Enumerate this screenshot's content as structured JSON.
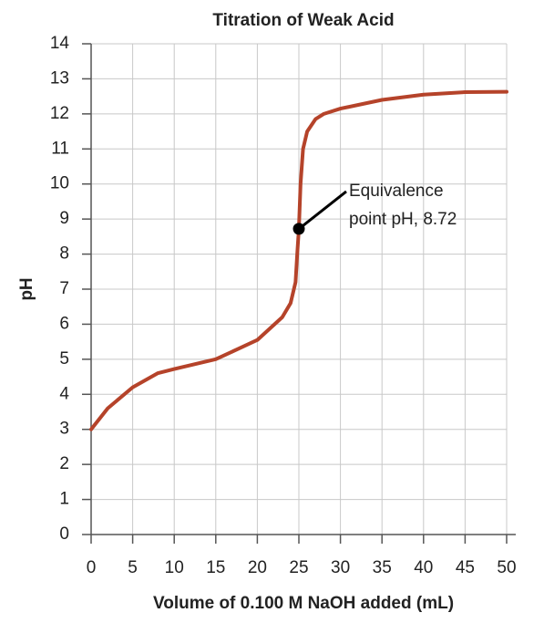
{
  "chart_data": {
    "type": "line",
    "title": "Titration of Weak Acid",
    "x_label": "Volume of 0.100 M NaOH added (mL)",
    "y_label": "pH",
    "x": [
      0,
      2,
      5,
      8,
      10,
      15,
      20,
      23,
      24,
      24.6,
      24.8,
      25,
      25.2,
      25.5,
      26,
      27,
      28,
      30,
      35,
      40,
      45,
      50
    ],
    "series": [
      {
        "color": "#b5432a",
        "values": [
          3.0,
          3.6,
          4.2,
          4.6,
          4.72,
          5.0,
          5.55,
          6.2,
          6.6,
          7.2,
          8.0,
          8.72,
          10.0,
          11.0,
          11.5,
          11.85,
          12.0,
          12.15,
          12.4,
          12.55,
          12.62,
          12.63
        ]
      }
    ],
    "marker": {
      "x": 25,
      "y": 8.72,
      "color": "#000000"
    },
    "annotation": [
      "Equivalence",
      "point pH, 8.72"
    ],
    "xlim": [
      0,
      50
    ],
    "xticks": [
      0,
      5,
      10,
      15,
      20,
      25,
      30,
      35,
      40,
      45,
      50
    ],
    "ylim": [
      0,
      14
    ],
    "yticks": [
      0,
      1,
      2,
      3,
      4,
      5,
      6,
      7,
      8,
      9,
      10,
      11,
      12,
      13,
      14
    ],
    "grid": true
  }
}
